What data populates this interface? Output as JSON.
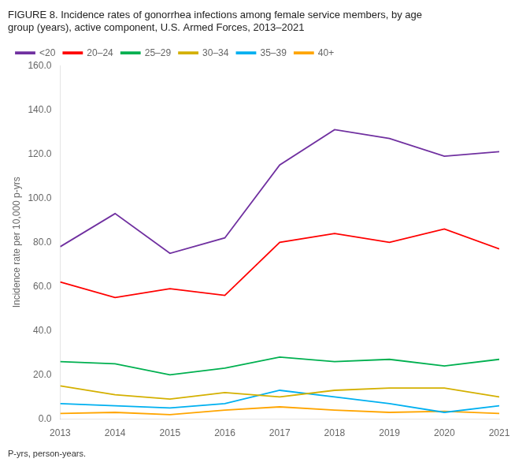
{
  "chart_data": {
    "type": "line",
    "title": "FIGURE 8. Incidence rates of gonorrhea infections among female service members, by age\ngroup (years), active component, U.S. Armed Forces, 2013–2021",
    "ylabel": "Incidence rate per 10,000 p-yrs",
    "footnote": "P-yrs, person-years.",
    "x": [
      2013,
      2014,
      2015,
      2016,
      2017,
      2018,
      2019,
      2020,
      2021
    ],
    "series": [
      {
        "name": "<20",
        "color": "#7030A0",
        "values": [
          78.0,
          93.0,
          75.0,
          82.0,
          115.0,
          131.0,
          127.0,
          119.0,
          121.0
        ]
      },
      {
        "name": "20–24",
        "color": "#FF0000",
        "values": [
          62.0,
          55.0,
          59.0,
          56.0,
          80.0,
          84.0,
          80.0,
          86.0,
          77.0
        ]
      },
      {
        "name": "25–29",
        "color": "#00B050",
        "values": [
          26.0,
          25.0,
          20.0,
          23.0,
          28.0,
          26.0,
          27.0,
          24.0,
          27.0
        ]
      },
      {
        "name": "30–34",
        "color": "#D4B000",
        "values": [
          15.0,
          11.0,
          9.0,
          12.0,
          10.0,
          13.0,
          14.0,
          14.0,
          10.0
        ]
      },
      {
        "name": "35–39",
        "color": "#00B0F0",
        "values": [
          7.0,
          6.0,
          5.0,
          7.0,
          13.0,
          10.0,
          7.0,
          3.0,
          6.0
        ]
      },
      {
        "name": "40+",
        "color": "#FFA500",
        "values": [
          2.5,
          3.0,
          2.0,
          4.0,
          5.5,
          4.0,
          3.0,
          3.5,
          2.5
        ]
      }
    ],
    "xlim": [
      2013,
      2021
    ],
    "xticks": [
      2013,
      2014,
      2015,
      2016,
      2017,
      2018,
      2019,
      2020,
      2021
    ],
    "ylim": [
      0,
      160
    ],
    "yticks": [
      {
        "value": 0,
        "label": "0.0"
      },
      {
        "value": 20,
        "label": "20.0"
      },
      {
        "value": 40,
        "label": "40.0"
      },
      {
        "value": 60,
        "label": "60.0"
      },
      {
        "value": 80,
        "label": "80.0"
      },
      {
        "value": 100,
        "label": "100.0"
      },
      {
        "value": 120,
        "label": "120.0"
      },
      {
        "value": 140,
        "label": "140.0"
      },
      {
        "value": 160,
        "label": "160.0"
      }
    ],
    "grid": false,
    "legend": "upper left"
  }
}
